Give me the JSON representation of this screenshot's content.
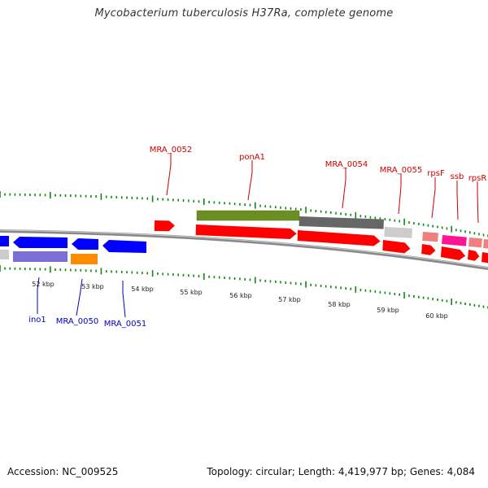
{
  "title": "Mycobacterium tuberculosis H37Ra, complete genome",
  "footer": {
    "accession": "Accession: NC_009525",
    "summary": "Topology: circular; Length: 4,419,977 bp; Genes: 4,084"
  },
  "tick_labels": [
    "52 kbp",
    "53 kbp",
    "54 kbp",
    "55 kbp",
    "56 kbp",
    "57 kbp",
    "58 kbp",
    "59 kbp",
    "60 kbp"
  ],
  "gene_labels_top": [
    "MRA_0052",
    "ponA1",
    "MRA_0054",
    "MRA_0055",
    "rpsF",
    "ssb",
    "rpsR"
  ],
  "gene_labels_bottom": [
    "ino1",
    "MRA_0050",
    "MRA_0051"
  ],
  "colors": {
    "plus_strand_label": "#cc0000",
    "minus_strand_label": "#0000bb",
    "tick": "#118811",
    "backbone": "#888888",
    "red_gene": "#ff0000",
    "blue_gene": "#0000ff",
    "pale_blue_gene": "#7b6fd6",
    "orange_gene": "#ff8c00",
    "olive_feature": "#6b8e23",
    "gray_feature": "#666666",
    "light_gray_feature": "#cccccc",
    "pink_feature": "#f08080",
    "magenta_feature": "#ff1493"
  }
}
